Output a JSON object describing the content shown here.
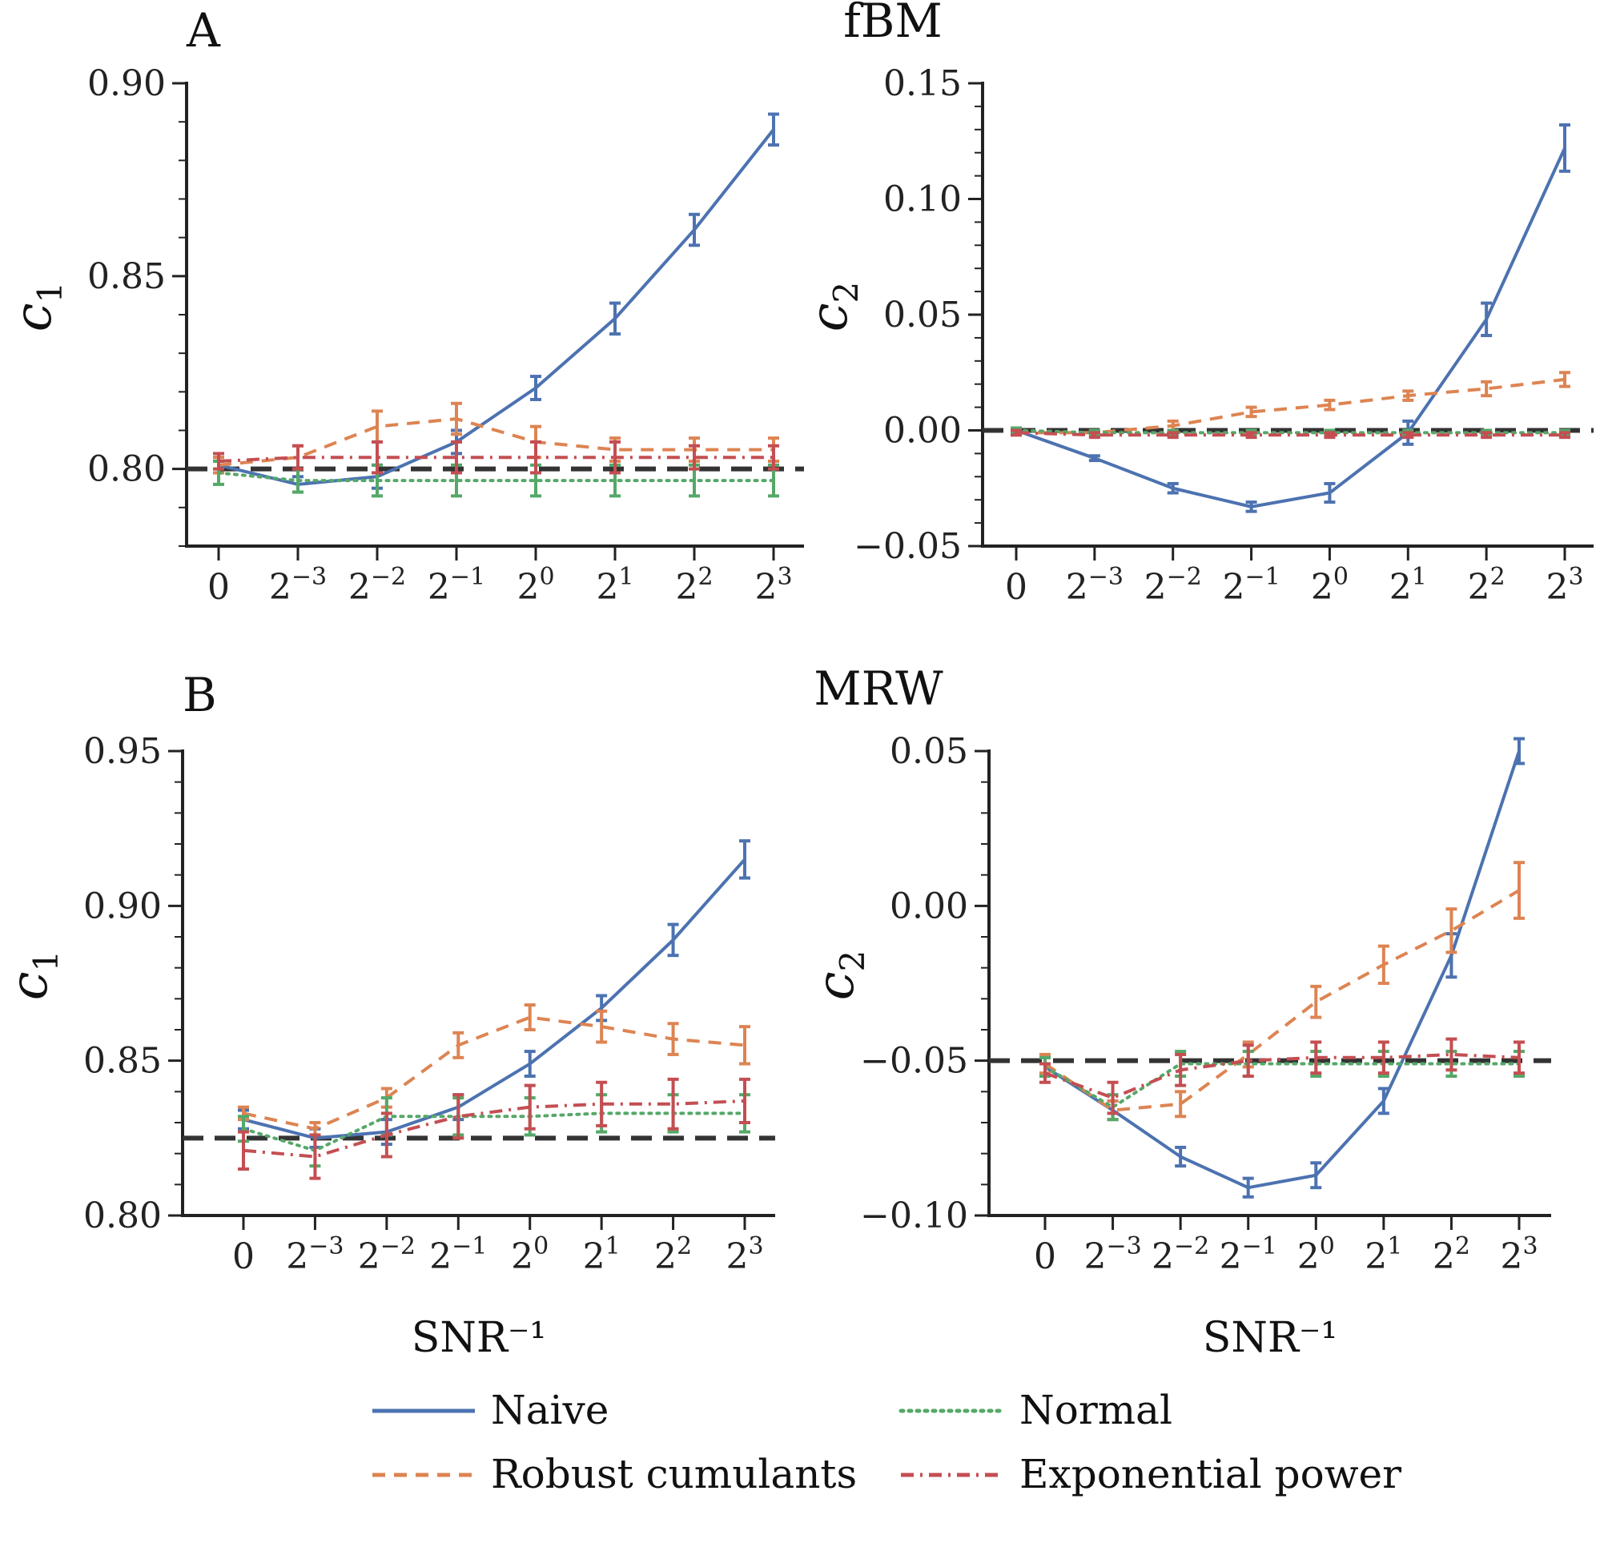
{
  "panel_labels": [
    "A",
    "B"
  ],
  "row_titles": [
    "fBM",
    "MRW"
  ],
  "chart_data": [
    {
      "type": "line",
      "panel": "A",
      "ylabel": "c1",
      "xlabel": "",
      "categories": [
        "0",
        "2^-3",
        "2^-2",
        "2^-1",
        "2^0",
        "2^1",
        "2^2",
        "2^3"
      ],
      "ylim": [
        0.78,
        0.9
      ],
      "yticks": [
        "0.80",
        "0.85",
        "0.90"
      ],
      "ytick_values": [
        0.8,
        0.85,
        0.9
      ],
      "reference": 0.8,
      "series": [
        {
          "name": "Naive",
          "values": [
            0.801,
            0.796,
            0.798,
            0.807,
            0.821,
            0.839,
            0.862,
            0.888
          ],
          "err": [
            0.002,
            0.002,
            0.003,
            0.003,
            0.003,
            0.004,
            0.004,
            0.004
          ]
        },
        {
          "name": "Robust cumulants",
          "values": [
            0.801,
            0.803,
            0.811,
            0.813,
            0.807,
            0.805,
            0.805,
            0.805
          ],
          "err": [
            0.002,
            0.003,
            0.004,
            0.004,
            0.004,
            0.003,
            0.003,
            0.003
          ]
        },
        {
          "name": "Normal",
          "values": [
            0.799,
            0.797,
            0.797,
            0.797,
            0.797,
            0.797,
            0.797,
            0.797
          ],
          "err": [
            0.003,
            0.003,
            0.004,
            0.004,
            0.004,
            0.004,
            0.004,
            0.004
          ]
        },
        {
          "name": "Exponential power",
          "values": [
            0.802,
            0.803,
            0.803,
            0.803,
            0.803,
            0.803,
            0.803,
            0.803
          ],
          "err": [
            0.002,
            0.003,
            0.004,
            0.004,
            0.004,
            0.004,
            0.003,
            0.003
          ]
        }
      ]
    },
    {
      "type": "line",
      "panel": "A",
      "ylabel": "c2",
      "xlabel": "",
      "categories": [
        "0",
        "2^-3",
        "2^-2",
        "2^-1",
        "2^0",
        "2^1",
        "2^2",
        "2^3"
      ],
      "ylim": [
        -0.05,
        0.15
      ],
      "yticks": [
        "−0.05",
        "0.00",
        "0.05",
        "0.10",
        "0.15"
      ],
      "ytick_values": [
        -0.05,
        0.0,
        0.05,
        0.1,
        0.15
      ],
      "reference": 0.0,
      "series": [
        {
          "name": "Naive",
          "values": [
            0.0,
            -0.012,
            -0.025,
            -0.033,
            -0.027,
            -0.001,
            0.048,
            0.122
          ],
          "err": [
            0.001,
            0.001,
            0.002,
            0.002,
            0.004,
            0.005,
            0.007,
            0.01
          ]
        },
        {
          "name": "Robust cumulants",
          "values": [
            -0.001,
            -0.001,
            0.002,
            0.008,
            0.011,
            0.015,
            0.018,
            0.022
          ],
          "err": [
            0.001,
            0.001,
            0.002,
            0.002,
            0.002,
            0.002,
            0.003,
            0.003
          ]
        },
        {
          "name": "Normal",
          "values": [
            0.0,
            -0.001,
            -0.001,
            -0.001,
            -0.001,
            -0.001,
            -0.001,
            -0.001
          ],
          "err": [
            0.001,
            0.001,
            0.001,
            0.001,
            0.001,
            0.001,
            0.001,
            0.001
          ]
        },
        {
          "name": "Exponential power",
          "values": [
            -0.001,
            -0.002,
            -0.002,
            -0.002,
            -0.002,
            -0.002,
            -0.002,
            -0.002
          ],
          "err": [
            0.001,
            0.001,
            0.001,
            0.001,
            0.001,
            0.001,
            0.001,
            0.001
          ]
        }
      ]
    },
    {
      "type": "line",
      "panel": "B",
      "ylabel": "c1",
      "xlabel": "SNR⁻¹",
      "categories": [
        "0",
        "2^-3",
        "2^-2",
        "2^-1",
        "2^0",
        "2^1",
        "2^2",
        "2^3"
      ],
      "ylim": [
        0.8,
        0.95
      ],
      "yticks": [
        "0.80",
        "0.85",
        "0.90",
        "0.95"
      ],
      "ytick_values": [
        0.8,
        0.85,
        0.9,
        0.95
      ],
      "reference": 0.825,
      "series": [
        {
          "name": "Naive",
          "values": [
            0.831,
            0.825,
            0.827,
            0.835,
            0.849,
            0.867,
            0.889,
            0.915
          ],
          "err": [
            0.003,
            0.003,
            0.004,
            0.004,
            0.004,
            0.004,
            0.005,
            0.006
          ]
        },
        {
          "name": "Robust cumulants",
          "values": [
            0.833,
            0.828,
            0.838,
            0.855,
            0.864,
            0.861,
            0.857,
            0.855
          ],
          "err": [
            0.002,
            0.002,
            0.003,
            0.004,
            0.004,
            0.005,
            0.005,
            0.006
          ]
        },
        {
          "name": "Normal",
          "values": [
            0.828,
            0.821,
            0.832,
            0.832,
            0.832,
            0.833,
            0.833,
            0.833
          ],
          "err": [
            0.004,
            0.005,
            0.006,
            0.006,
            0.006,
            0.006,
            0.006,
            0.006
          ]
        },
        {
          "name": "Exponential power",
          "values": [
            0.821,
            0.819,
            0.826,
            0.832,
            0.835,
            0.836,
            0.836,
            0.837
          ],
          "err": [
            0.006,
            0.007,
            0.007,
            0.007,
            0.007,
            0.007,
            0.008,
            0.007
          ]
        }
      ]
    },
    {
      "type": "line",
      "panel": "B",
      "ylabel": "c2",
      "xlabel": "SNR⁻¹",
      "categories": [
        "0",
        "2^-3",
        "2^-2",
        "2^-1",
        "2^0",
        "2^1",
        "2^2",
        "2^3"
      ],
      "ylim": [
        -0.1,
        0.05
      ],
      "yticks": [
        "−0.10",
        "−0.05",
        "0.00",
        "0.05"
      ],
      "ytick_values": [
        -0.1,
        -0.05,
        0.0,
        0.05
      ],
      "reference": -0.05,
      "series": [
        {
          "name": "Naive",
          "values": [
            -0.052,
            -0.066,
            -0.081,
            -0.091,
            -0.087,
            -0.063,
            -0.016,
            0.05
          ],
          "err": [
            0.003,
            0.003,
            0.003,
            0.003,
            0.004,
            0.004,
            0.007,
            0.004
          ]
        },
        {
          "name": "Robust cumulants",
          "values": [
            -0.051,
            -0.066,
            -0.064,
            -0.048,
            -0.031,
            -0.019,
            -0.008,
            0.005
          ],
          "err": [
            0.003,
            0.003,
            0.004,
            0.004,
            0.005,
            0.006,
            0.007,
            0.009
          ]
        },
        {
          "name": "Normal",
          "values": [
            -0.052,
            -0.065,
            -0.051,
            -0.051,
            -0.051,
            -0.051,
            -0.051,
            -0.051
          ],
          "err": [
            0.003,
            0.004,
            0.004,
            0.004,
            0.004,
            0.004,
            0.004,
            0.004
          ]
        },
        {
          "name": "Exponential power",
          "values": [
            -0.054,
            -0.062,
            -0.053,
            -0.05,
            -0.049,
            -0.049,
            -0.048,
            -0.049
          ],
          "err": [
            0.003,
            0.005,
            0.005,
            0.005,
            0.005,
            0.005,
            0.005,
            0.005
          ]
        }
      ]
    }
  ],
  "legend": {
    "placement": "bottom-center",
    "items": [
      {
        "name": "Naive",
        "color": "#4c72b0",
        "dash": "solid"
      },
      {
        "name": "Normal",
        "color": "#55a868",
        "dash": "dotted"
      },
      {
        "name": "Robust cumulants",
        "color": "#dd8452",
        "dash": "dashed"
      },
      {
        "name": "Exponential power",
        "color": "#c44e52",
        "dash": "dashdot"
      }
    ]
  },
  "colors": {
    "naive": "#4c72b0",
    "robust": "#dd8452",
    "normal": "#55a868",
    "exppower": "#c44e52",
    "reference": "#333333",
    "axis": "#222222"
  }
}
